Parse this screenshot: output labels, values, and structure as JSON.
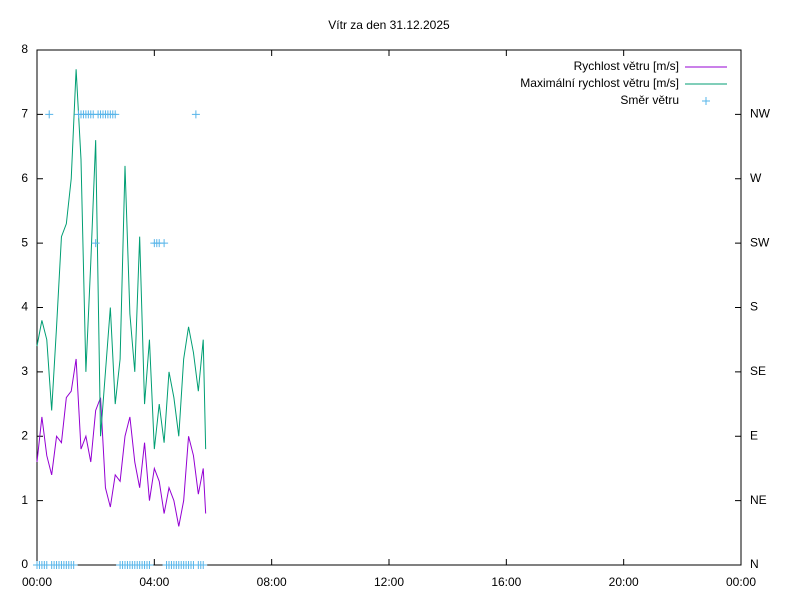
{
  "chart_data": {
    "type": "line",
    "title": "Vítr za den 31.12.2025",
    "x": [
      0,
      10,
      20,
      30,
      40,
      50,
      60,
      70,
      80,
      90,
      100,
      110,
      120,
      130,
      140,
      150,
      160,
      170,
      180,
      190,
      200,
      210,
      220,
      230,
      240,
      250,
      260,
      270,
      280,
      290,
      300,
      310,
      320,
      330,
      340,
      345
    ],
    "xlim": [
      0,
      1440
    ],
    "xticks": [
      {
        "value": 0,
        "label": "00:00"
      },
      {
        "value": 240,
        "label": "04:00"
      },
      {
        "value": 480,
        "label": "08:00"
      },
      {
        "value": 720,
        "label": "12:00"
      },
      {
        "value": 960,
        "label": "16:00"
      },
      {
        "value": 1200,
        "label": "20:00"
      },
      {
        "value": 1440,
        "label": "00:00"
      }
    ],
    "ylim": [
      0,
      8
    ],
    "yticks": [
      0,
      1,
      2,
      3,
      4,
      5,
      6,
      7,
      8
    ],
    "y2lim": [
      0,
      8
    ],
    "y2ticks": [
      {
        "value": 0,
        "label": "N"
      },
      {
        "value": 1,
        "label": "NE"
      },
      {
        "value": 2,
        "label": "E"
      },
      {
        "value": 3,
        "label": "SE"
      },
      {
        "value": 4,
        "label": "S"
      },
      {
        "value": 5,
        "label": "SW"
      },
      {
        "value": 6,
        "label": "W"
      },
      {
        "value": 7,
        "label": "NW"
      }
    ],
    "legend": "top-right",
    "series": [
      {
        "name": "Rychlost větru [m/s]",
        "color": "#9400d3",
        "values": [
          1.6,
          2.3,
          1.7,
          1.4,
          2.0,
          1.9,
          2.6,
          2.7,
          3.2,
          1.8,
          2.0,
          1.6,
          2.4,
          2.6,
          1.2,
          0.9,
          1.4,
          1.3,
          2.0,
          2.3,
          1.6,
          1.2,
          1.9,
          1.0,
          1.5,
          1.3,
          0.8,
          1.2,
          1.0,
          0.6,
          1.0,
          2.0,
          1.7,
          1.1,
          1.5,
          0.8
        ]
      },
      {
        "name": "Maximální rychlost větru [m/s]",
        "color": "#009e73",
        "values": [
          3.4,
          3.8,
          3.5,
          2.4,
          3.7,
          5.1,
          5.3,
          6.0,
          7.7,
          6.3,
          3.0,
          4.7,
          6.6,
          2.0,
          3.0,
          4.0,
          2.5,
          3.2,
          6.2,
          3.9,
          3.0,
          5.1,
          2.5,
          3.5,
          1.8,
          2.5,
          1.9,
          3.0,
          2.6,
          2.0,
          3.2,
          3.7,
          3.3,
          2.7,
          3.5,
          1.8
        ]
      },
      {
        "name": "Směr větru",
        "color": "#56b4e9",
        "axis": "y2",
        "marker": "+",
        "x": [
          0,
          5,
          10,
          15,
          20,
          25,
          30,
          35,
          40,
          45,
          50,
          55,
          60,
          65,
          70,
          75,
          85,
          90,
          95,
          100,
          105,
          110,
          115,
          120,
          125,
          130,
          135,
          140,
          145,
          150,
          155,
          160,
          170,
          175,
          180,
          185,
          190,
          195,
          200,
          205,
          210,
          215,
          220,
          225,
          230,
          240,
          245,
          250,
          260,
          265,
          270,
          275,
          280,
          285,
          290,
          295,
          300,
          305,
          310,
          315,
          320,
          325,
          330,
          335,
          340
        ],
        "values": [
          0,
          0,
          0,
          0,
          0,
          7,
          0,
          0,
          0,
          0,
          0,
          0,
          0,
          0,
          0,
          0,
          7,
          7,
          7,
          7,
          7,
          7,
          7,
          5,
          7,
          7,
          7,
          7,
          7,
          7,
          7,
          7,
          0,
          0,
          0,
          0,
          0,
          0,
          0,
          0,
          0,
          0,
          0,
          0,
          0,
          5,
          5,
          5,
          5,
          0,
          0,
          0,
          0,
          0,
          0,
          0,
          0,
          0,
          0,
          0,
          0,
          7,
          0,
          0,
          0
        ]
      }
    ]
  }
}
